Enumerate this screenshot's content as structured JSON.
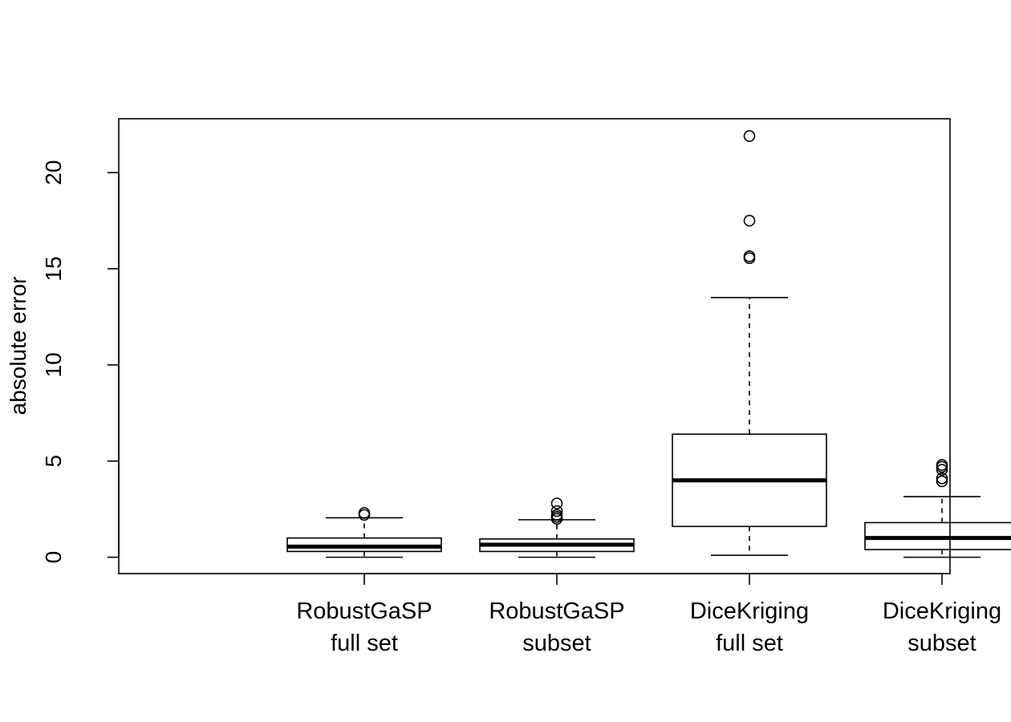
{
  "chart_data": {
    "type": "box",
    "ylabel": "absolute error",
    "ylim": [
      -0.85,
      22.8
    ],
    "yticks": [
      0,
      5,
      10,
      15,
      20
    ],
    "grid": false,
    "legend": "none",
    "colors": {
      "stroke": "#000000",
      "background": "#ffffff"
    },
    "categories": [
      {
        "lines": [
          "RobustGaSP",
          "full set"
        ]
      },
      {
        "lines": [
          "RobustGaSP",
          "subset"
        ]
      },
      {
        "lines": [
          "DiceKriging",
          "full set"
        ]
      },
      {
        "lines": [
          "DiceKriging",
          "subset"
        ]
      }
    ],
    "boxes": [
      {
        "whisker_low": 0.0,
        "q1": 0.3,
        "median": 0.55,
        "q3": 1.0,
        "whisker_high": 2.05,
        "outliers": [
          2.2,
          2.3
        ]
      },
      {
        "whisker_low": 0.0,
        "q1": 0.3,
        "median": 0.65,
        "q3": 0.95,
        "whisker_high": 1.95,
        "outliers": [
          2.0,
          2.1,
          2.2,
          2.4,
          2.8
        ]
      },
      {
        "whisker_low": 0.1,
        "q1": 1.6,
        "median": 4.0,
        "q3": 6.4,
        "whisker_high": 13.5,
        "outliers": [
          15.55,
          15.65,
          17.5,
          21.9
        ]
      },
      {
        "whisker_low": 0.0,
        "q1": 0.4,
        "median": 1.0,
        "q3": 1.8,
        "whisker_high": 3.15,
        "outliers": [
          3.95,
          4.1,
          4.55,
          4.7,
          4.8
        ]
      }
    ]
  }
}
